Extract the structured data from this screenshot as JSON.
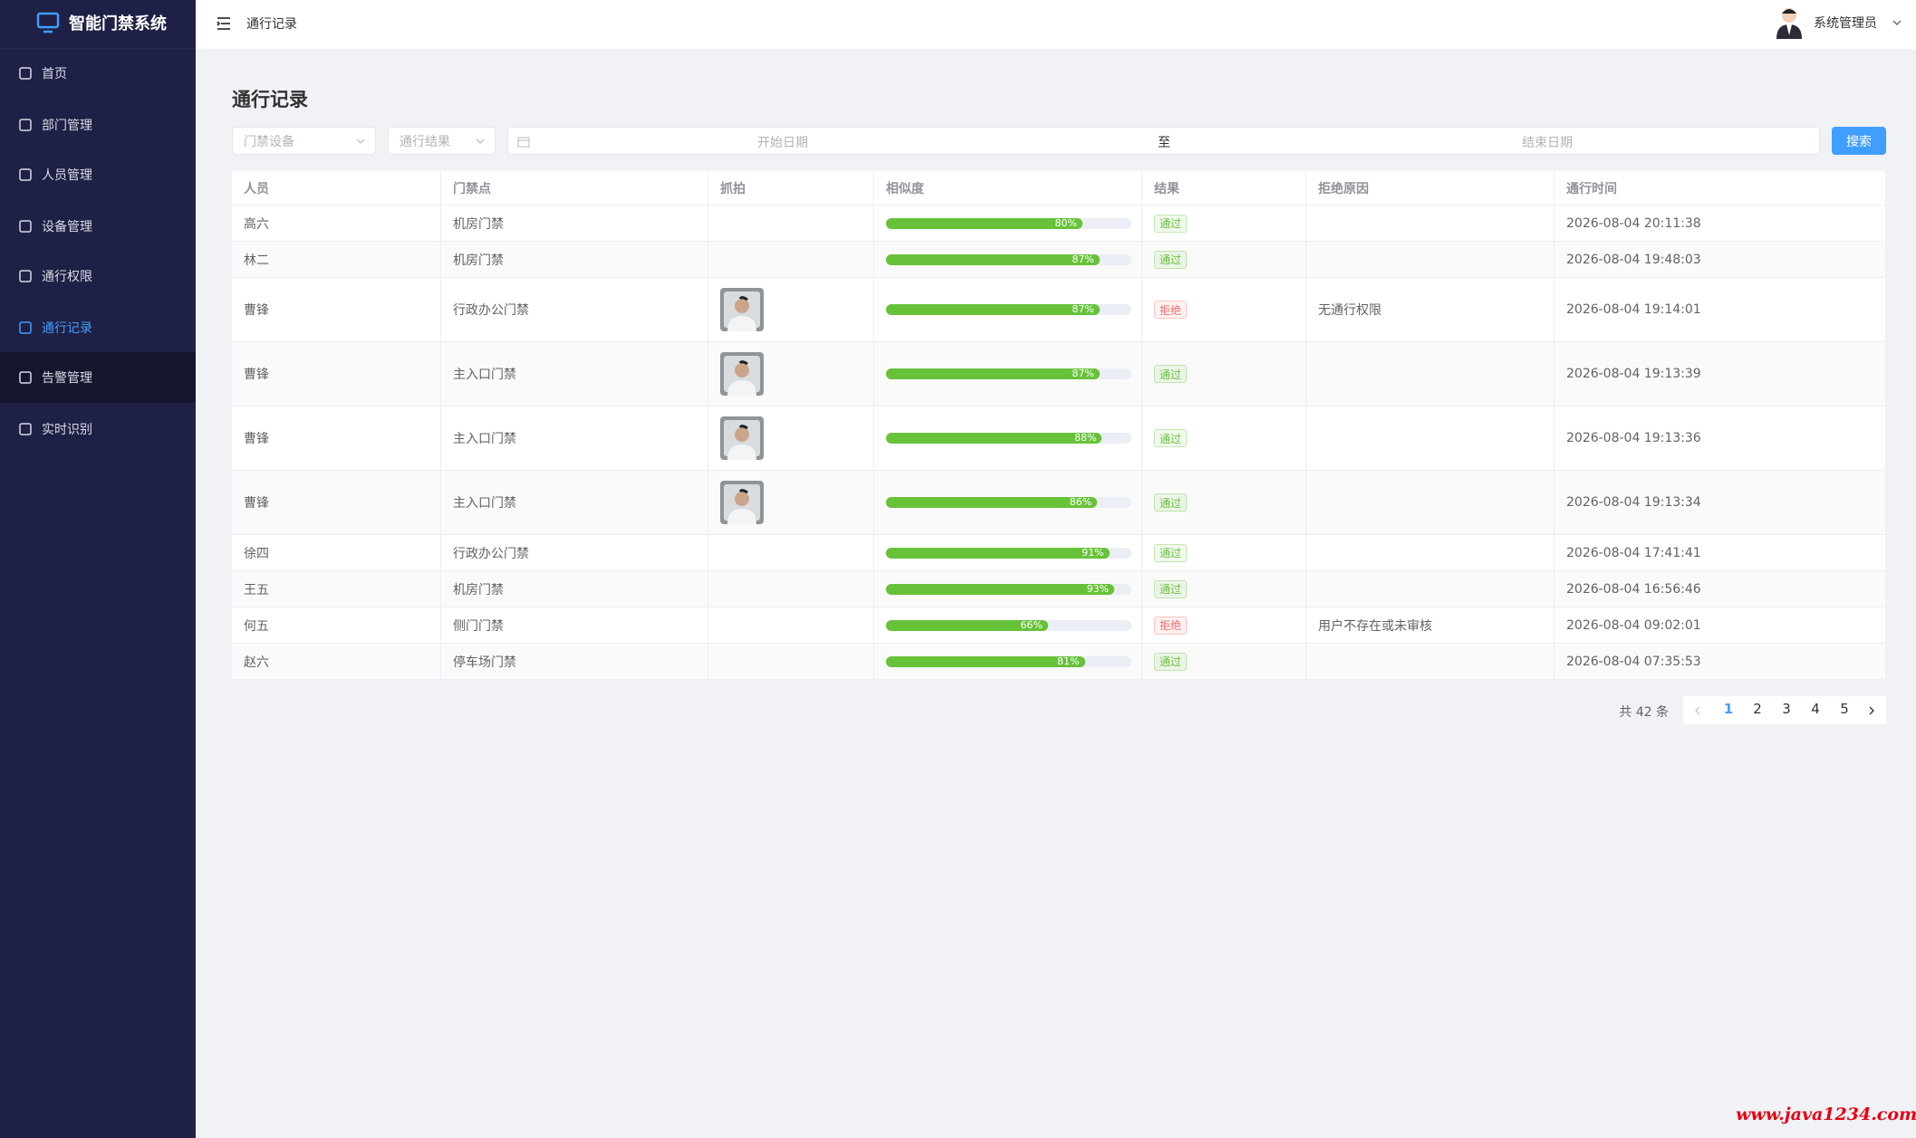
{
  "sidebar": {
    "title": "智能门禁系统",
    "menu": [
      "首页",
      "部门管理",
      "人员管理",
      "设备管理",
      "通行权限",
      "通行记录",
      "告警管理",
      "实时识别"
    ],
    "active": 5,
    "hover": 6
  },
  "header": {
    "breadcrumb": "通行记录",
    "user": "系统管理员"
  },
  "page_title": "通行记录",
  "filters": {
    "device": "门禁设备",
    "result": "通行结果",
    "start": "开始日期",
    "separator": "至",
    "end": "结束日期",
    "search": "搜索"
  },
  "result_colors": {
    "通过": "#67c23a",
    "拒绝": "#f56c6c"
  },
  "table": {
    "columns": [
      "人员",
      "门禁点",
      "抓拍",
      "相似度",
      "结果",
      "拒绝原因",
      "通行时间"
    ],
    "rows": [
      {
        "person": "高六",
        "door": "机房门禁",
        "photo": false,
        "similarity": 80,
        "similarity_label": "80%",
        "result": "通过",
        "reason": "",
        "time": "2026-08-04 20:11:38"
      },
      {
        "person": "林二",
        "door": "机房门禁",
        "photo": false,
        "similarity": 87,
        "similarity_label": "87%",
        "result": "通过",
        "reason": "",
        "time": "2026-08-04 19:48:03"
      },
      {
        "person": "曹锋",
        "door": "行政办公门禁",
        "photo": true,
        "similarity": 87,
        "similarity_label": "87%",
        "result": "拒绝",
        "reason": "无通行权限",
        "time": "2026-08-04 19:14:01"
      },
      {
        "person": "曹锋",
        "door": "主入口门禁",
        "photo": true,
        "similarity": 87,
        "similarity_label": "87%",
        "result": "通过",
        "reason": "",
        "time": "2026-08-04 19:13:39"
      },
      {
        "person": "曹锋",
        "door": "主入口门禁",
        "photo": true,
        "similarity": 88,
        "similarity_label": "88%",
        "result": "通过",
        "reason": "",
        "time": "2026-08-04 19:13:36"
      },
      {
        "person": "曹锋",
        "door": "主入口门禁",
        "photo": true,
        "similarity": 86,
        "similarity_label": "86%",
        "result": "通过",
        "reason": "",
        "time": "2026-08-04 19:13:34"
      },
      {
        "person": "徐四",
        "door": "行政办公门禁",
        "photo": false,
        "similarity": 91,
        "similarity_label": "91%",
        "result": "通过",
        "reason": "",
        "time": "2026-08-04 17:41:41"
      },
      {
        "person": "王五",
        "door": "机房门禁",
        "photo": false,
        "similarity": 93,
        "similarity_label": "93%",
        "result": "通过",
        "reason": "",
        "time": "2026-08-04 16:56:46"
      },
      {
        "person": "何五",
        "door": "侧门门禁",
        "photo": false,
        "similarity": 66,
        "similarity_label": "66%",
        "result": "拒绝",
        "reason": "用户不存在或未审核",
        "time": "2026-08-04 09:02:01"
      },
      {
        "person": "赵六",
        "door": "停车场门禁",
        "photo": false,
        "similarity": 81,
        "similarity_label": "81%",
        "result": "通过",
        "reason": "",
        "time": "2026-08-04 07:35:53"
      }
    ]
  },
  "pagination": {
    "total": "共 42 条",
    "pages": [
      1,
      2,
      3,
      4,
      5
    ],
    "current": 1
  },
  "watermark": "www.java1234.com"
}
